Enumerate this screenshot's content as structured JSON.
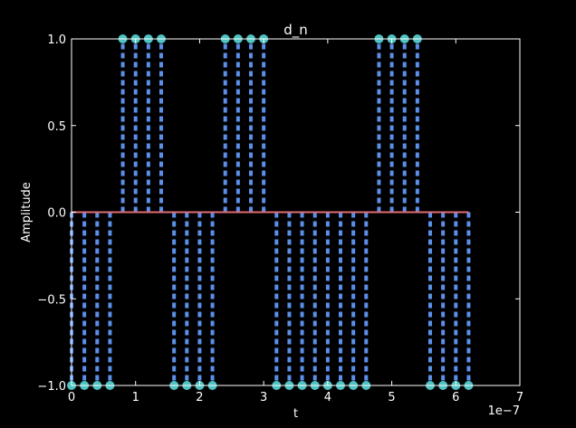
{
  "chart_data": {
    "type": "stem",
    "title": "d_n",
    "xlabel": "t",
    "ylabel": "Amplitude",
    "x_scale_label": "1e−7",
    "xlim": [
      0,
      7
    ],
    "ylim": [
      -1.0,
      1.0
    ],
    "xticks": [
      "0",
      "1",
      "2",
      "3",
      "4",
      "5",
      "6",
      "7"
    ],
    "yticks": [
      "−1.0",
      "−0.5",
      "0.0",
      "0.5",
      "1.0"
    ],
    "x": [
      0.0,
      0.2,
      0.4,
      0.6,
      0.8,
      1.0,
      1.2,
      1.4,
      1.6,
      1.8,
      2.0,
      2.2,
      2.4,
      2.6,
      2.8,
      3.0,
      3.2,
      3.4,
      3.6,
      3.8,
      4.0,
      4.2,
      4.4,
      4.6,
      4.8,
      5.0,
      5.2,
      5.4,
      5.6,
      5.8,
      6.0,
      6.2
    ],
    "values": [
      -1,
      -1,
      -1,
      -1,
      1,
      1,
      1,
      1,
      -1,
      -1,
      -1,
      -1,
      1,
      1,
      1,
      1,
      -1,
      -1,
      -1,
      -1,
      -1,
      -1,
      -1,
      -1,
      1,
      1,
      1,
      1,
      -1,
      -1,
      -1,
      -1
    ],
    "baseline": 0.0,
    "colors": {
      "stem": "#5b8fe8",
      "marker": "#4fc3c3",
      "baseline": "#e06c75",
      "axes": "#ffffff",
      "background": "#000000"
    }
  }
}
